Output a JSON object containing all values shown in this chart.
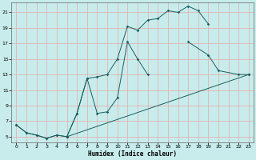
{
  "xlabel": "Humidex (Indice chaleur)",
  "bg_color": "#c8ecec",
  "grid_color": "#e8a8a8",
  "line_color": "#1a6060",
  "xlim": [
    -0.5,
    23.5
  ],
  "ylim": [
    4.3,
    22.3
  ],
  "xticks": [
    0,
    1,
    2,
    3,
    4,
    5,
    6,
    7,
    8,
    9,
    10,
    11,
    12,
    13,
    14,
    15,
    16,
    17,
    18,
    19,
    20,
    21,
    22,
    23
  ],
  "yticks": [
    5,
    7,
    9,
    11,
    13,
    15,
    17,
    19,
    21
  ],
  "curve1_x": [
    0,
    1,
    2,
    3,
    4,
    5,
    6,
    7,
    8,
    9,
    10,
    11,
    12,
    13,
    14,
    15,
    16,
    17,
    18,
    19
  ],
  "curve1_y": [
    6.5,
    5.5,
    5.2,
    4.8,
    5.2,
    5.0,
    8.0,
    12.5,
    12.7,
    13.0,
    15.0,
    19.2,
    18.7,
    20.0,
    20.2,
    21.2,
    21.0,
    21.8,
    21.2,
    19.5
  ],
  "curve2a_x": [
    0,
    1,
    2,
    3,
    4,
    5
  ],
  "curve2a_y": [
    6.5,
    5.5,
    5.2,
    4.8,
    5.2,
    5.0
  ],
  "curve2b_x": [
    5,
    6,
    7,
    8,
    9,
    10,
    11,
    12,
    13
  ],
  "curve2b_y": [
    5.0,
    8.0,
    12.5,
    8.0,
    8.2,
    10.0,
    17.2,
    15.0,
    13.0
  ],
  "curve2c_x": [
    17,
    19,
    20,
    22,
    23
  ],
  "curve2c_y": [
    17.2,
    15.5,
    13.5,
    13.0,
    13.0
  ],
  "curve3_x": [
    5,
    23
  ],
  "curve3_y": [
    5.0,
    13.0
  ]
}
